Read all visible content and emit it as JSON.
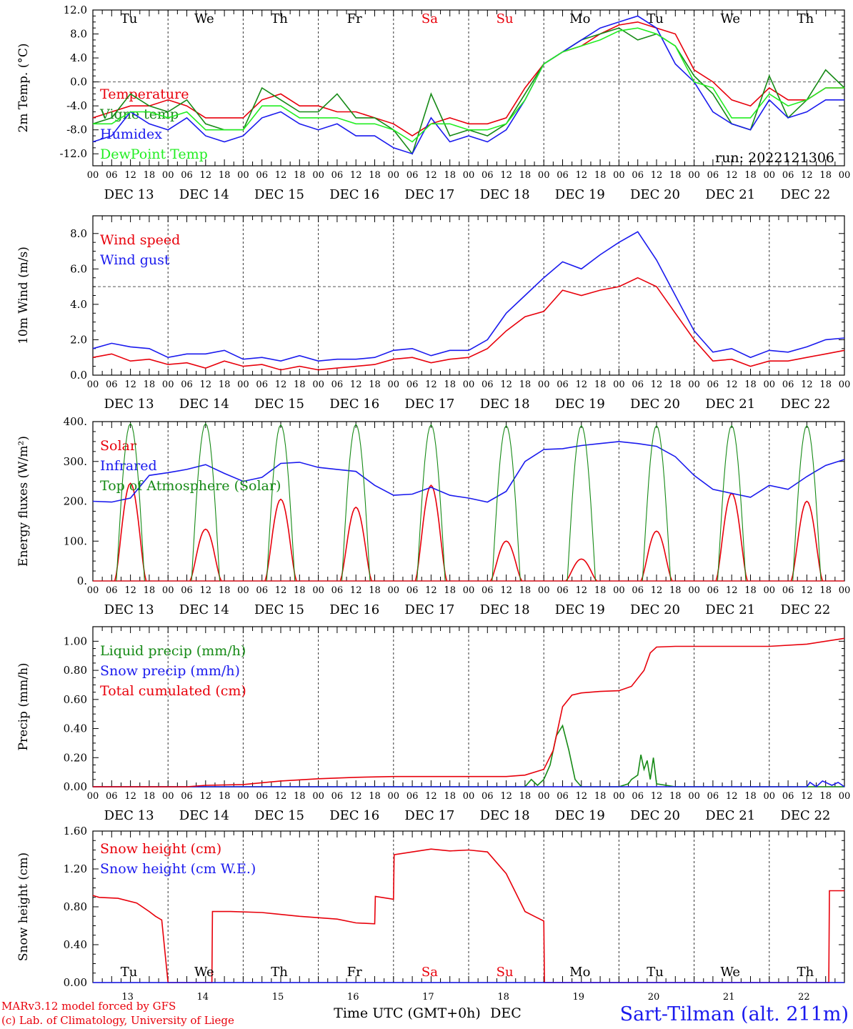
{
  "colors": {
    "red": "#e8000b",
    "blue": "#1a1aee",
    "dark_green": "#168a16",
    "light_green": "#22ee22",
    "black": "#000000",
    "grey": "#555555"
  },
  "run_label": "run: 2022121306",
  "days": [
    "13",
    "14",
    "15",
    "16",
    "17",
    "18",
    "19",
    "20",
    "21",
    "22"
  ],
  "day_names": [
    "Tu",
    "We",
    "Th",
    "Fr",
    "Sa",
    "Su",
    "Mo",
    "Tu",
    "We",
    "Th"
  ],
  "weekend_days": [
    4,
    5
  ],
  "date_labels": [
    "DEC 13",
    "DEC 14",
    "DEC 15",
    "DEC 16",
    "DEC 17",
    "DEC 18",
    "DEC 19",
    "DEC 20",
    "DEC 21",
    "DEC 22"
  ],
  "hour_labels": [
    "00",
    "06",
    "12",
    "18"
  ],
  "footer": {
    "model": "MARv3.12 model forced by GFS",
    "copyright": "(c) Lab. of Climatology, University of Liege",
    "x_title": "Time UTC (GMT+0h)",
    "x_month": "DEC",
    "station": "Sart-Tilman (alt. 211m)"
  },
  "chart_data": [
    {
      "type": "line",
      "id": "temperature",
      "ylabel": "2m Temp. (°C)",
      "ylim": [
        -14,
        12
      ],
      "yticks": [
        -12,
        -8,
        -4,
        0,
        4,
        8,
        12
      ],
      "ytick_labels": [
        "-12.0",
        "-8.0",
        "-4.0",
        "0.0",
        "4.0",
        "8.0",
        "12.0"
      ],
      "ref_line": 0,
      "x_unit": "hours since 2022-12-13 00 UTC",
      "series": [
        {
          "name": "Temperature",
          "color": "red",
          "x": [
            0,
            6,
            12,
            18,
            24,
            30,
            36,
            42,
            48,
            54,
            60,
            66,
            72,
            78,
            84,
            90,
            96,
            102,
            108,
            114,
            120,
            126,
            132,
            138,
            144,
            150,
            156,
            162,
            168,
            174,
            180,
            186,
            192,
            198,
            204,
            210,
            216,
            222,
            228,
            234,
            240
          ],
          "y": [
            -6,
            -5,
            -4,
            -4,
            -3,
            -4,
            -6,
            -6,
            -6,
            -3,
            -2,
            -4,
            -4,
            -5,
            -5,
            -6,
            -7,
            -9,
            -7,
            -6,
            -7,
            -7,
            -6,
            -1,
            3,
            5,
            6,
            8,
            9.5,
            10,
            9,
            8,
            2,
            0,
            -3,
            -4,
            -1,
            -3,
            -3,
            -1,
            -1
          ]
        },
        {
          "name": "Vigne temp",
          "color": "dark_green",
          "x": [
            0,
            6,
            12,
            18,
            24,
            30,
            36,
            42,
            48,
            54,
            60,
            66,
            72,
            78,
            84,
            90,
            96,
            102,
            108,
            114,
            120,
            126,
            132,
            138,
            144,
            150,
            156,
            162,
            168,
            174,
            180,
            186,
            192,
            198,
            204,
            210,
            216,
            222,
            228,
            234,
            240
          ],
          "y": [
            -7,
            -6,
            -2,
            -4,
            -5,
            -3,
            -7,
            -8,
            -8,
            -1,
            -3,
            -5,
            -5,
            -2,
            -6,
            -6,
            -8,
            -12,
            -2,
            -9,
            -8,
            -9,
            -7,
            -2,
            3,
            5,
            7,
            8,
            9,
            7,
            8,
            6,
            1,
            -2,
            -7,
            -8,
            1,
            -6,
            -3,
            2,
            -1
          ]
        },
        {
          "name": "Humidex",
          "color": "blue",
          "x": [
            0,
            6,
            12,
            18,
            24,
            30,
            36,
            42,
            48,
            54,
            60,
            66,
            72,
            78,
            84,
            90,
            96,
            102,
            108,
            114,
            120,
            126,
            132,
            138,
            144,
            150,
            156,
            162,
            168,
            174,
            180,
            186,
            192,
            198,
            204,
            210,
            216,
            222,
            228,
            234,
            240
          ],
          "y": [
            -10,
            -9,
            -5,
            -7,
            -8,
            -6,
            -9,
            -10,
            -9,
            -6,
            -5,
            -7,
            -8,
            -7,
            -9,
            -9,
            -11,
            -12,
            -6,
            -10,
            -9,
            -10,
            -8,
            -3,
            3,
            5,
            7,
            9,
            10,
            11,
            9,
            3,
            0,
            -5,
            -7,
            -8,
            -3,
            -6,
            -5,
            -3,
            -3
          ]
        },
        {
          "name": "DewPoint Temp",
          "color": "light_green",
          "x": [
            0,
            6,
            12,
            18,
            24,
            30,
            36,
            42,
            48,
            54,
            60,
            66,
            72,
            78,
            84,
            90,
            96,
            102,
            108,
            114,
            120,
            126,
            132,
            138,
            144,
            150,
            156,
            162,
            168,
            174,
            180,
            186,
            192,
            198,
            204,
            210,
            216,
            222,
            228,
            234,
            240
          ],
          "y": [
            -7,
            -7,
            -5,
            -5,
            -6,
            -5,
            -8,
            -8,
            -8,
            -4,
            -4,
            -6,
            -6,
            -6,
            -7,
            -7,
            -8,
            -10,
            -7,
            -7,
            -8,
            -8,
            -7,
            -3,
            3,
            5,
            6,
            7,
            8.5,
            9,
            8,
            6,
            0,
            -1,
            -6,
            -6,
            -2,
            -4,
            -3,
            -1,
            -1
          ]
        }
      ]
    },
    {
      "type": "line",
      "id": "wind",
      "ylabel": "10m Wind (m/s)",
      "ylim": [
        0,
        9
      ],
      "yticks": [
        0,
        2,
        4,
        6,
        8
      ],
      "ytick_labels": [
        "0.0",
        "2.0",
        "4.0",
        "6.0",
        "8.0"
      ],
      "ref_line": 5,
      "series": [
        {
          "name": "Wind speed",
          "color": "red",
          "x": [
            0,
            6,
            12,
            18,
            24,
            30,
            36,
            42,
            48,
            54,
            60,
            66,
            72,
            78,
            84,
            90,
            96,
            102,
            108,
            114,
            120,
            126,
            132,
            138,
            144,
            150,
            156,
            162,
            168,
            174,
            180,
            186,
            192,
            198,
            204,
            210,
            216,
            222,
            228,
            234,
            240
          ],
          "y": [
            1,
            1.2,
            0.8,
            0.9,
            0.6,
            0.7,
            0.4,
            0.8,
            0.5,
            0.6,
            0.3,
            0.5,
            0.3,
            0.4,
            0.5,
            0.6,
            0.9,
            1.0,
            0.7,
            0.9,
            1.0,
            1.5,
            2.5,
            3.3,
            3.6,
            4.8,
            4.5,
            4.8,
            5.0,
            5.5,
            5.0,
            3.5,
            2.0,
            0.8,
            0.9,
            0.5,
            0.8,
            0.8,
            1.0,
            1.2,
            1.4
          ]
        },
        {
          "name": "Wind gust",
          "color": "blue",
          "x": [
            0,
            6,
            12,
            18,
            24,
            30,
            36,
            42,
            48,
            54,
            60,
            66,
            72,
            78,
            84,
            90,
            96,
            102,
            108,
            114,
            120,
            126,
            132,
            138,
            144,
            150,
            156,
            162,
            168,
            174,
            180,
            186,
            192,
            198,
            204,
            210,
            216,
            222,
            228,
            234,
            240
          ],
          "y": [
            1.5,
            1.8,
            1.6,
            1.5,
            1.0,
            1.2,
            1.2,
            1.4,
            0.9,
            1.0,
            0.8,
            1.1,
            0.8,
            0.9,
            0.9,
            1.0,
            1.4,
            1.5,
            1.1,
            1.4,
            1.4,
            2.0,
            3.5,
            4.5,
            5.5,
            6.4,
            6.0,
            6.8,
            7.5,
            8.1,
            6.5,
            4.5,
            2.5,
            1.3,
            1.5,
            1.0,
            1.4,
            1.3,
            1.6,
            2.0,
            2.1
          ]
        }
      ]
    },
    {
      "type": "line",
      "id": "energy",
      "ylabel": "Energy fluxes (W/m²)",
      "ylim": [
        0,
        400
      ],
      "yticks": [
        0,
        100,
        200,
        300,
        400
      ],
      "ytick_labels": [
        "0.",
        "100.",
        "200.",
        "300.",
        "400."
      ],
      "solar_peaks": [
        245,
        130,
        205,
        185,
        240,
        100,
        55,
        125,
        220,
        200
      ],
      "toa_peaks": [
        395,
        395,
        392,
        393,
        392,
        390,
        390,
        390,
        390,
        390
      ],
      "series": [
        {
          "name": "Solar",
          "color": "red"
        },
        {
          "name": "Infrared",
          "color": "blue",
          "x": [
            0,
            6,
            12,
            18,
            24,
            30,
            36,
            42,
            48,
            54,
            60,
            66,
            72,
            78,
            84,
            90,
            96,
            102,
            108,
            114,
            120,
            126,
            132,
            138,
            144,
            150,
            156,
            162,
            168,
            174,
            180,
            186,
            192,
            198,
            204,
            210,
            216,
            222,
            228,
            234,
            240
          ],
          "y": [
            200,
            198,
            208,
            265,
            272,
            280,
            292,
            270,
            250,
            260,
            295,
            298,
            285,
            280,
            275,
            240,
            215,
            218,
            235,
            215,
            208,
            198,
            225,
            300,
            330,
            332,
            340,
            345,
            350,
            345,
            338,
            312,
            265,
            230,
            220,
            210,
            240,
            230,
            262,
            290,
            305
          ]
        },
        {
          "name": "Top of Atmosphere (Solar)",
          "color": "dark_green"
        }
      ]
    },
    {
      "type": "line",
      "id": "precip",
      "ylabel": "Precip (mm/h)",
      "ylim": [
        0,
        1.1
      ],
      "yticks": [
        0,
        0.2,
        0.4,
        0.6,
        0.8,
        1.0
      ],
      "ytick_labels": [
        "0.00",
        "0.20",
        "0.40",
        "0.60",
        "0.80",
        "1.00"
      ],
      "series": [
        {
          "name": "Liquid precip (mm/h)",
          "color": "dark_green",
          "x": [
            0,
            120,
            138,
            140,
            142,
            144,
            146,
            148,
            150,
            152,
            154,
            156,
            168,
            171,
            172,
            174,
            175,
            176,
            177,
            178,
            179,
            180,
            186,
            228,
            240
          ],
          "y": [
            0,
            0,
            0,
            0.05,
            0.01,
            0.05,
            0.15,
            0.35,
            0.42,
            0.25,
            0.05,
            0,
            0,
            0.02,
            0.05,
            0.08,
            0.22,
            0.12,
            0.18,
            0.05,
            0.2,
            0.02,
            0,
            0,
            0
          ]
        },
        {
          "name": "Snow precip (mm/h)",
          "color": "blue",
          "x": [
            0,
            228,
            229,
            231,
            233,
            236,
            238,
            240
          ],
          "y": [
            0,
            0,
            0.03,
            0,
            0.04,
            0.01,
            0.03,
            0
          ]
        },
        {
          "name": "Total cumulated (cm)",
          "color": "red",
          "x": [
            0,
            30,
            36,
            48,
            60,
            72,
            84,
            96,
            108,
            120,
            132,
            138,
            144,
            147,
            150,
            153,
            156,
            162,
            168,
            172,
            176,
            178,
            180,
            186,
            192,
            204,
            216,
            228,
            240
          ],
          "y": [
            0,
            0,
            0.01,
            0.015,
            0.04,
            0.055,
            0.065,
            0.07,
            0.07,
            0.07,
            0.07,
            0.08,
            0.12,
            0.25,
            0.55,
            0.63,
            0.645,
            0.655,
            0.66,
            0.69,
            0.8,
            0.92,
            0.96,
            0.965,
            0.965,
            0.965,
            0.965,
            0.98,
            1.02
          ]
        }
      ]
    },
    {
      "type": "line",
      "id": "snow",
      "ylabel": "Snow height (cm)",
      "ylim": [
        0,
        1.6
      ],
      "yticks": [
        0,
        0.4,
        0.8,
        1.2,
        1.6
      ],
      "ytick_labels": [
        "0.00",
        "0.40",
        "0.80",
        "1.20",
        "1.60"
      ],
      "series": [
        {
          "name": "Snow height (cm)",
          "color": "red",
          "x": [
            0,
            2,
            8,
            14,
            18,
            20,
            22,
            24,
            38,
            38.2,
            44,
            54,
            66,
            78,
            84,
            90,
            90.2,
            96,
            96.2,
            102,
            108,
            114,
            120,
            126,
            132,
            135,
            138,
            141,
            144,
            144.2,
            200,
            230,
            235,
            235.2,
            240
          ],
          "y": [
            0.92,
            0.9,
            0.89,
            0.84,
            0.75,
            0.7,
            0.66,
            0,
            0,
            0.75,
            0.75,
            0.74,
            0.7,
            0.67,
            0.63,
            0.62,
            0.91,
            0.88,
            1.35,
            1.38,
            1.41,
            1.39,
            1.4,
            1.38,
            1.15,
            0.95,
            0.75,
            0.7,
            0.65,
            0,
            0,
            0,
            0,
            0.97,
            0.97
          ]
        },
        {
          "name": "Snow height (cm W.E.)",
          "color": "blue",
          "x": [
            0,
            240
          ],
          "y": [
            0,
            0
          ]
        }
      ]
    }
  ]
}
